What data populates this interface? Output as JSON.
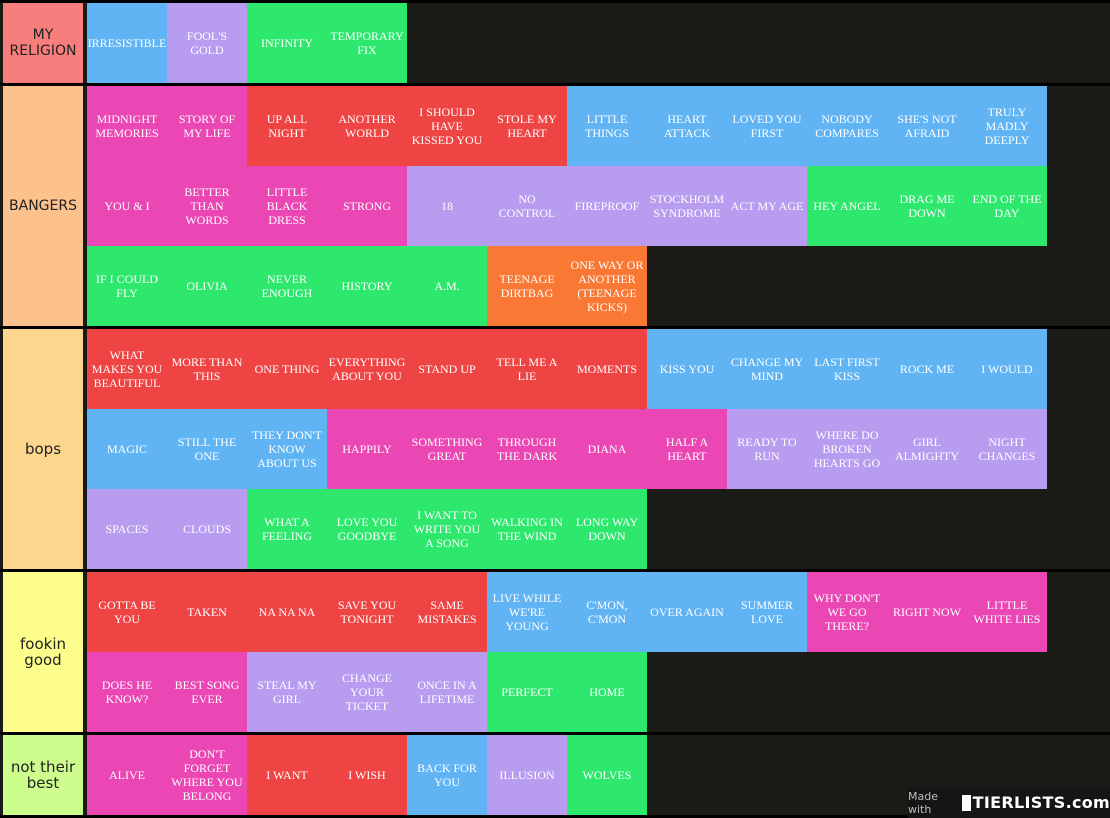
{
  "colors": {
    "blue": "#61b4f4",
    "purple": "#b79cf0",
    "green": "#2ee86e",
    "pink": "#ea47b4",
    "red": "#ef4444",
    "orange": "#f97834"
  },
  "tiers": [
    {
      "label": "MY RELIGION",
      "color": "#f87e7e",
      "rows": [
        [
          {
            "title": "IRRESISTIBLE",
            "color": "blue"
          },
          {
            "title": "FOOL'S GOLD",
            "color": "purple"
          },
          {
            "title": "INFINITY",
            "color": "green"
          },
          {
            "title": "TEMPORARY FIX",
            "color": "green"
          }
        ]
      ]
    },
    {
      "label": "BANGERS",
      "color": "#fdc18b",
      "rows": [
        [
          {
            "title": "MIDNIGHT MEMORIES",
            "color": "pink"
          },
          {
            "title": "STORY OF MY LIFE",
            "color": "pink"
          },
          {
            "title": "UP ALL NIGHT",
            "color": "red"
          },
          {
            "title": "ANOTHER WORLD",
            "color": "red"
          },
          {
            "title": "I SHOULD HAVE KISSED YOU",
            "color": "red"
          },
          {
            "title": "STOLE MY HEART",
            "color": "red"
          },
          {
            "title": "LITTLE THINGS",
            "color": "blue"
          },
          {
            "title": "HEART ATTACK",
            "color": "blue"
          },
          {
            "title": "LOVED YOU FIRST",
            "color": "blue"
          },
          {
            "title": "NOBODY COMPARES",
            "color": "blue"
          },
          {
            "title": "SHE'S NOT AFRAID",
            "color": "blue"
          },
          {
            "title": "TRULY MADLY DEEPLY",
            "color": "blue"
          }
        ],
        [
          {
            "title": "YOU & I",
            "color": "pink"
          },
          {
            "title": "BETTER THAN WORDS",
            "color": "pink"
          },
          {
            "title": "LITTLE BLACK DRESS",
            "color": "pink"
          },
          {
            "title": "STRONG",
            "color": "pink"
          },
          {
            "title": "18",
            "color": "purple"
          },
          {
            "title": "NO CONTROL",
            "color": "purple"
          },
          {
            "title": "FIREPROOF",
            "color": "purple"
          },
          {
            "title": "STOCKHOLM SYNDROME",
            "color": "purple"
          },
          {
            "title": "ACT MY AGE",
            "color": "purple"
          },
          {
            "title": "HEY ANGEL",
            "color": "green"
          },
          {
            "title": "DRAG ME DOWN",
            "color": "green"
          },
          {
            "title": "END OF THE DAY",
            "color": "green"
          }
        ],
        [
          {
            "title": "IF I COULD FLY",
            "color": "green"
          },
          {
            "title": "OLIVIA",
            "color": "green"
          },
          {
            "title": "NEVER ENOUGH",
            "color": "green"
          },
          {
            "title": "HISTORY",
            "color": "green"
          },
          {
            "title": "A.M.",
            "color": "green"
          },
          {
            "title": "TEENAGE DIRTBAG",
            "color": "orange"
          },
          {
            "title": "ONE WAY OR ANOTHER (TEENAGE KICKS)",
            "color": "orange"
          }
        ]
      ]
    },
    {
      "label": "bops",
      "color": "#fdd58c",
      "rows": [
        [
          {
            "title": "WHAT MAKES YOU BEAUTIFUL",
            "color": "red"
          },
          {
            "title": "MORE THAN THIS",
            "color": "red"
          },
          {
            "title": "ONE THING",
            "color": "red"
          },
          {
            "title": "EVERYTHING ABOUT YOU",
            "color": "red"
          },
          {
            "title": "STAND UP",
            "color": "red"
          },
          {
            "title": "TELL ME A LIE",
            "color": "red"
          },
          {
            "title": "MOMENTS",
            "color": "red"
          },
          {
            "title": "KISS YOU",
            "color": "blue"
          },
          {
            "title": "CHANGE MY MIND",
            "color": "blue"
          },
          {
            "title": "LAST FIRST KISS",
            "color": "blue"
          },
          {
            "title": "ROCK ME",
            "color": "blue"
          },
          {
            "title": "I WOULD",
            "color": "blue"
          }
        ],
        [
          {
            "title": "MAGIC",
            "color": "blue"
          },
          {
            "title": "STILL THE ONE",
            "color": "blue"
          },
          {
            "title": "THEY DON'T KNOW ABOUT US",
            "color": "blue"
          },
          {
            "title": "HAPPILY",
            "color": "pink"
          },
          {
            "title": "SOMETHING GREAT",
            "color": "pink"
          },
          {
            "title": "THROUGH THE DARK",
            "color": "pink"
          },
          {
            "title": "DIANA",
            "color": "pink"
          },
          {
            "title": "HALF A HEART",
            "color": "pink"
          },
          {
            "title": "READY TO RUN",
            "color": "purple"
          },
          {
            "title": "WHERE DO BROKEN HEARTS GO",
            "color": "purple"
          },
          {
            "title": "GIRL ALMIGHTY",
            "color": "purple"
          },
          {
            "title": "NIGHT CHANGES",
            "color": "purple"
          }
        ],
        [
          {
            "title": "SPACES",
            "color": "purple"
          },
          {
            "title": "CLOUDS",
            "color": "purple"
          },
          {
            "title": "WHAT A FEELING",
            "color": "green"
          },
          {
            "title": "LOVE YOU GOODBYE",
            "color": "green"
          },
          {
            "title": "I WANT TO WRITE YOU A SONG",
            "color": "green"
          },
          {
            "title": "WALKING IN THE WIND",
            "color": "green"
          },
          {
            "title": "LONG WAY DOWN",
            "color": "green"
          }
        ]
      ]
    },
    {
      "label": "fookin good",
      "color": "#fdfd8c",
      "rows": [
        [
          {
            "title": "GOTTA BE YOU",
            "color": "red"
          },
          {
            "title": "TAKEN",
            "color": "red"
          },
          {
            "title": "NA NA NA",
            "color": "red"
          },
          {
            "title": "SAVE YOU TONIGHT",
            "color": "red"
          },
          {
            "title": "SAME MISTAKES",
            "color": "red"
          },
          {
            "title": "LIVE WHILE WE'RE YOUNG",
            "color": "blue"
          },
          {
            "title": "C'MON, C'MON",
            "color": "blue"
          },
          {
            "title": "OVER AGAIN",
            "color": "blue"
          },
          {
            "title": "SUMMER LOVE",
            "color": "blue"
          },
          {
            "title": "WHY DON'T WE GO THERE?",
            "color": "pink"
          },
          {
            "title": "RIGHT NOW",
            "color": "pink"
          },
          {
            "title": "LITTLE WHITE LIES",
            "color": "pink"
          }
        ],
        [
          {
            "title": "DOES HE KNOW?",
            "color": "pink"
          },
          {
            "title": "BEST SONG EVER",
            "color": "pink"
          },
          {
            "title": "STEAL MY GIRL",
            "color": "purple"
          },
          {
            "title": "CHANGE YOUR TICKET",
            "color": "purple"
          },
          {
            "title": "ONCE IN A LIFETIME",
            "color": "purple"
          },
          {
            "title": "PERFECT",
            "color": "green"
          },
          {
            "title": "HOME",
            "color": "green"
          }
        ]
      ]
    },
    {
      "label": "not their best",
      "color": "#cdfd8c",
      "rows": [
        [
          {
            "title": "ALIVE",
            "color": "pink"
          },
          {
            "title": "DON'T FORGET WHERE YOU BELONG",
            "color": "pink"
          },
          {
            "title": "I WANT",
            "color": "red"
          },
          {
            "title": "I WISH",
            "color": "red"
          },
          {
            "title": "BACK FOR YOU",
            "color": "blue"
          },
          {
            "title": "ILLUSION",
            "color": "purple"
          },
          {
            "title": "WOLVES",
            "color": "green"
          }
        ]
      ]
    }
  ],
  "watermark": {
    "made_with": "Made with",
    "brand": "TIERLISTS.com"
  }
}
